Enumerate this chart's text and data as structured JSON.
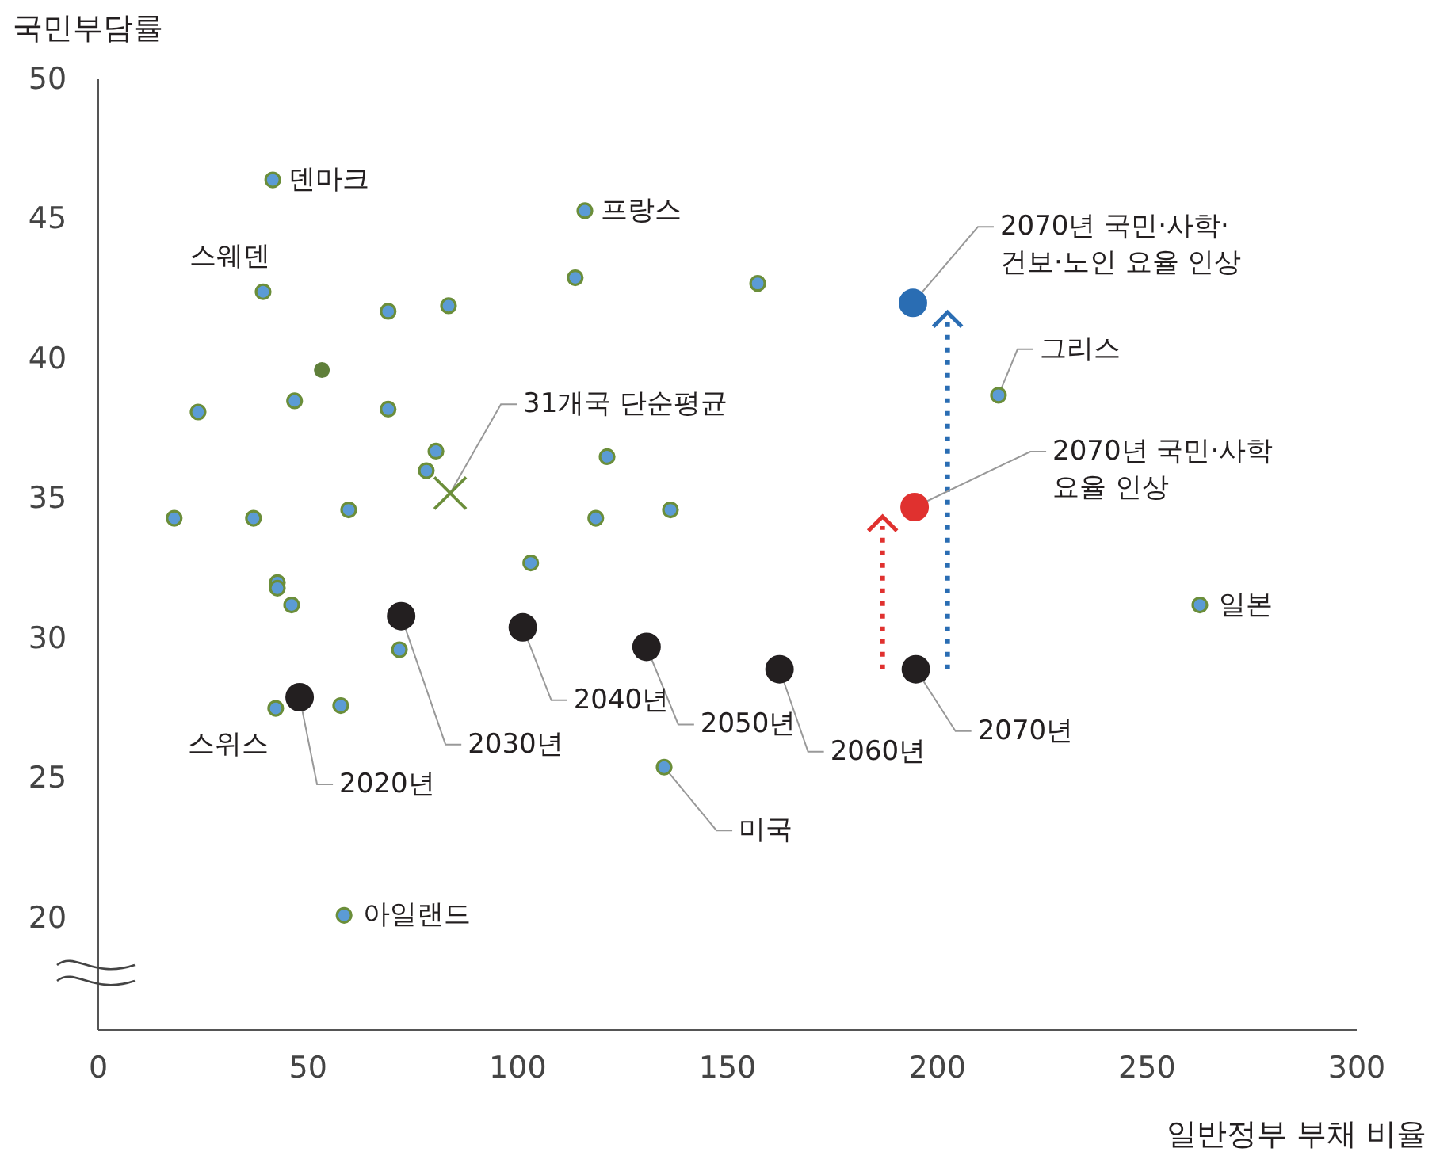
{
  "chart_data": {
    "type": "scatter",
    "xlabel": "일반정부 부채 비율",
    "ylabel": "국민부담률",
    "xlim": [
      0,
      300
    ],
    "ylim": [
      16,
      50
    ],
    "xticks": [
      0,
      50,
      100,
      150,
      200,
      250,
      300
    ],
    "yticks": [
      20,
      25,
      30,
      35,
      40,
      45,
      50
    ],
    "grid": false,
    "series": [
      {
        "color": "#5b9bd5",
        "marker": "circle",
        "x": [
          41.6,
          116,
          39.3,
          69.1,
          83.5,
          113.7,
          157.2,
          23.8,
          46.8,
          69.1,
          80.5,
          78.2,
          121.3,
          18.1,
          37.0,
          59.7,
          118.6,
          136.4,
          103.1,
          42.7,
          42.7,
          46.1,
          71.8,
          42.3,
          57.8,
          134.9,
          58.6,
          214.6,
          262.6
        ],
        "values": [
          46.4,
          45.3,
          42.4,
          41.7,
          41.9,
          42.9,
          42.7,
          38.1,
          38.5,
          38.2,
          36.7,
          36.0,
          36.5,
          34.3,
          34.3,
          34.6,
          34.3,
          34.6,
          32.7,
          32.0,
          31.8,
          31.2,
          29.6,
          27.5,
          27.6,
          25.4,
          20.1,
          38.7,
          31.2
        ]
      },
      {
        "color": "#5f7f3a",
        "marker": "circle",
        "x": [
          53.3
        ],
        "values": [
          39.6
        ]
      },
      {
        "color": "#6b8e3a",
        "marker": "cross",
        "x": [
          83.9
        ],
        "values": [
          35.2
        ]
      },
      {
        "color": "#231f20",
        "marker": "circle",
        "x": [
          48.0,
          72.2,
          101.2,
          130.7,
          162.4,
          194.9
        ],
        "values": [
          27.9,
          30.8,
          30.4,
          29.7,
          28.9,
          28.9
        ]
      },
      {
        "color": "#2a6db3",
        "marker": "circle",
        "x": [
          194.2
        ],
        "values": [
          42.0
        ]
      },
      {
        "color": "#e0312f",
        "marker": "circle",
        "x": [
          194.6
        ],
        "values": [
          34.7
        ]
      }
    ],
    "annotations": [
      {
        "text": "덴마크",
        "x": 41.6,
        "y": 46.4
      },
      {
        "text": "프랑스",
        "x": 116,
        "y": 45.3
      },
      {
        "text": "스웨덴",
        "x": 39.3,
        "y": 42.4
      },
      {
        "text": "그리스",
        "x": 214.6,
        "y": 38.7
      },
      {
        "text": "일본",
        "x": 262.6,
        "y": 31.2
      },
      {
        "text": "스위스",
        "x": 42.3,
        "y": 27.5
      },
      {
        "text": "미국",
        "x": 134.9,
        "y": 25.4
      },
      {
        "text": "아일랜드",
        "x": 58.6,
        "y": 20.1
      },
      {
        "text": "31개국 단순평균",
        "x": 83.9,
        "y": 35.2
      },
      {
        "text": "2070년 국민·사학·건보·노인 요율 인상",
        "x": 194.2,
        "y": 42.0
      },
      {
        "text": "2070년 국민·사학 요율 인상",
        "x": 194.6,
        "y": 34.7
      },
      {
        "text": "2020년",
        "x": 48.0,
        "y": 27.9
      },
      {
        "text": "2030년",
        "x": 72.2,
        "y": 30.8
      },
      {
        "text": "2040년",
        "x": 101.2,
        "y": 30.4
      },
      {
        "text": "2050년",
        "x": 130.7,
        "y": 29.7
      },
      {
        "text": "2060년",
        "x": 162.4,
        "y": 28.9
      },
      {
        "text": "2070년",
        "x": 194.9,
        "y": 28.9
      }
    ]
  }
}
